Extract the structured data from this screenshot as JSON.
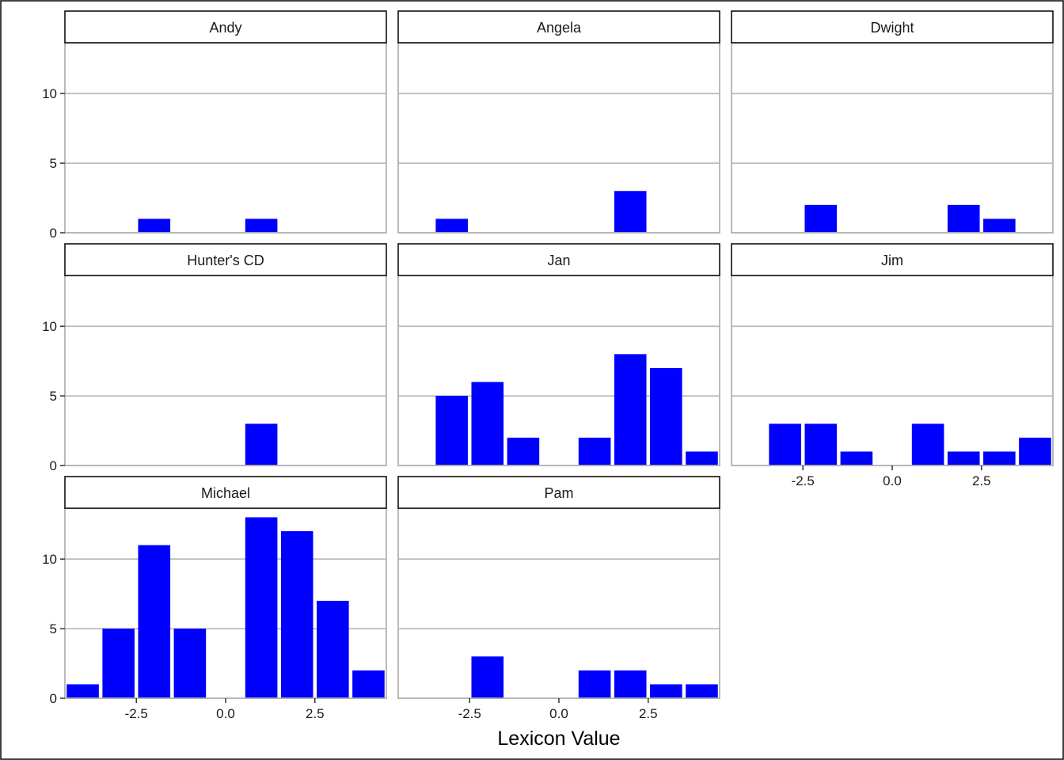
{
  "chart_data": {
    "type": "bar",
    "xlabel": "Lexicon Value",
    "ylabel": "",
    "x_values": [
      -4,
      -3,
      -2,
      -1,
      0,
      1,
      2,
      3,
      4
    ],
    "xlim": [
      -4.5,
      4.5
    ],
    "ylim": [
      0,
      13.65
    ],
    "x_ticks": [
      -2.5,
      0,
      2.5
    ],
    "x_tick_labels": [
      "-2.5",
      "0.0",
      "2.5"
    ],
    "y_ticks": [
      0,
      5,
      10
    ],
    "y_tick_labels": [
      "0",
      "5",
      "10"
    ],
    "bar_color": "#0000ff",
    "grid": "horizontal major",
    "panels": [
      {
        "name": "Andy",
        "bars": [
          {
            "x": -2,
            "y": 1
          },
          {
            "x": 1,
            "y": 1
          }
        ]
      },
      {
        "name": "Angela",
        "bars": [
          {
            "x": -3,
            "y": 1
          },
          {
            "x": 2,
            "y": 3
          }
        ]
      },
      {
        "name": "Dwight",
        "bars": [
          {
            "x": -2,
            "y": 2
          },
          {
            "x": 2,
            "y": 2
          },
          {
            "x": 3,
            "y": 1
          }
        ]
      },
      {
        "name": "Hunter's CD",
        "bars": [
          {
            "x": 1,
            "y": 3
          }
        ]
      },
      {
        "name": "Jan",
        "bars": [
          {
            "x": -3,
            "y": 5
          },
          {
            "x": -2,
            "y": 6
          },
          {
            "x": -1,
            "y": 2
          },
          {
            "x": 1,
            "y": 2
          },
          {
            "x": 2,
            "y": 8
          },
          {
            "x": 3,
            "y": 7
          },
          {
            "x": 4,
            "y": 1
          }
        ]
      },
      {
        "name": "Jim",
        "bars": [
          {
            "x": -3,
            "y": 3
          },
          {
            "x": -2,
            "y": 3
          },
          {
            "x": -1,
            "y": 1
          },
          {
            "x": 1,
            "y": 3
          },
          {
            "x": 2,
            "y": 1
          },
          {
            "x": 3,
            "y": 1
          },
          {
            "x": 4,
            "y": 2
          }
        ]
      },
      {
        "name": "Michael",
        "bars": [
          {
            "x": -4,
            "y": 1
          },
          {
            "x": -3,
            "y": 5
          },
          {
            "x": -2,
            "y": 11
          },
          {
            "x": -1,
            "y": 5
          },
          {
            "x": 1,
            "y": 13
          },
          {
            "x": 2,
            "y": 12
          },
          {
            "x": 3,
            "y": 7
          },
          {
            "x": 4,
            "y": 2
          }
        ]
      },
      {
        "name": "Pam",
        "bars": [
          {
            "x": -2,
            "y": 3
          },
          {
            "x": 1,
            "y": 2
          },
          {
            "x": 2,
            "y": 2
          },
          {
            "x": 3,
            "y": 1
          },
          {
            "x": 4,
            "y": 1
          }
        ]
      }
    ]
  }
}
